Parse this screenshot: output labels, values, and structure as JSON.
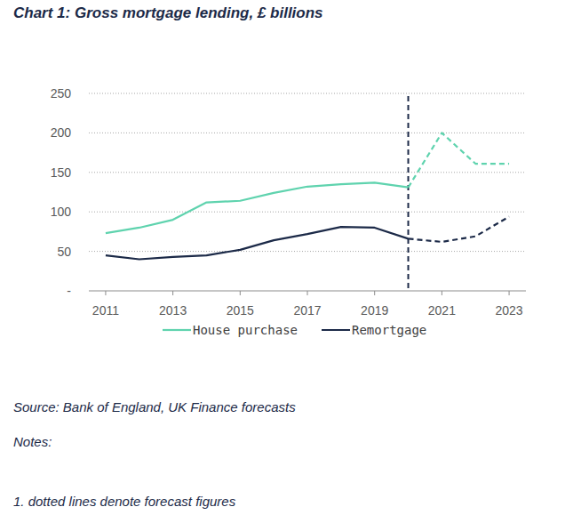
{
  "chart_data": {
    "type": "line",
    "title": "Chart 1: Gross mortgage lending, £ billions",
    "x": [
      2011,
      2012,
      2013,
      2014,
      2015,
      2016,
      2017,
      2018,
      2019,
      2020,
      2021,
      2022,
      2023
    ],
    "series": [
      {
        "name": "House purchase",
        "color": "#5fd3ae",
        "line_style": "solid",
        "values": [
          73,
          80,
          90,
          112,
          114,
          124,
          132,
          135,
          137,
          131,
          null,
          null,
          null
        ]
      },
      {
        "name": "Remortgage",
        "color": "#1c2a48",
        "line_style": "solid",
        "values": [
          45,
          40,
          43,
          45,
          52,
          64,
          72,
          81,
          80,
          66,
          null,
          null,
          null
        ]
      },
      {
        "color": "#5fd3ae",
        "line_style": "dashed",
        "values": [
          null,
          null,
          null,
          null,
          null,
          null,
          null,
          null,
          null,
          131,
          200,
          161,
          161
        ]
      },
      {
        "color": "#1c2a48",
        "line_style": "dashed",
        "values": [
          null,
          null,
          null,
          null,
          null,
          null,
          null,
          null,
          null,
          66,
          62,
          69,
          94
        ]
      }
    ],
    "xlim": [
      2010.5,
      2023.5
    ],
    "xticks": [
      2011,
      2013,
      2015,
      2017,
      2019,
      2021,
      2023
    ],
    "ylim": [
      0,
      250
    ],
    "yticks": [
      {
        "value": 0,
        "label": "-"
      },
      50,
      100,
      150,
      200,
      250
    ],
    "grid": true,
    "legend": "bottom",
    "vlines": [
      2020
    ],
    "source": "Source: Bank of England, UK Finance forecasts",
    "notes_heading": "Notes:",
    "notes": [
      "1. dotted lines denote forecast figures"
    ]
  }
}
